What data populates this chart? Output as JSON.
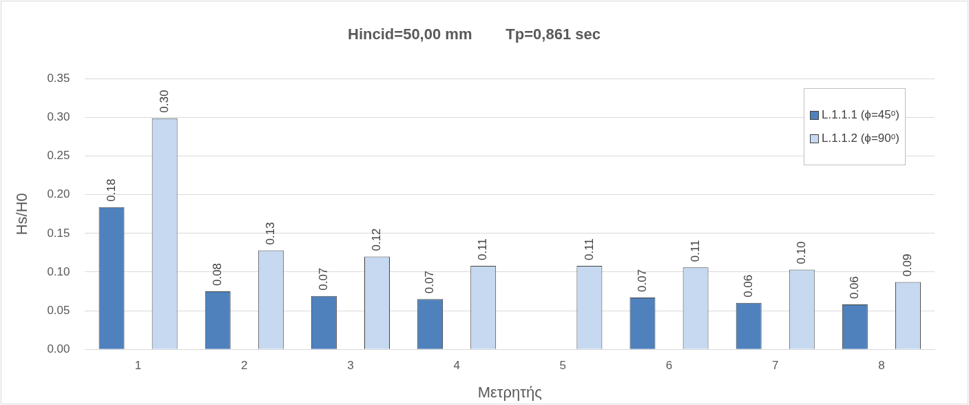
{
  "chart_data": {
    "type": "bar",
    "title": "Hincid=50,00 mm        Tp=0,861 sec",
    "xlabel": "Μετρητής",
    "ylabel": "Hs/H0",
    "categories": [
      "1",
      "2",
      "3",
      "4",
      "5",
      "6",
      "7",
      "8"
    ],
    "series": [
      {
        "name": "L.1.1.1 (ϕ=45ᵒ)",
        "color": "#4f81bd",
        "values": [
          0.184,
          0.075,
          0.069,
          0.065,
          null,
          0.067,
          0.06,
          0.058
        ],
        "value_labels": [
          "0.18",
          "0.08",
          "0.07",
          "0.07",
          null,
          "0.07",
          "0.06",
          "0.06"
        ]
      },
      {
        "name": "L.1.1.2 (ϕ=90ᵒ)",
        "color": "#c6d9f1",
        "values": [
          0.299,
          0.128,
          0.12,
          0.108,
          0.108,
          0.106,
          0.103,
          0.087
        ],
        "value_labels": [
          "0.30",
          "0.13",
          "0.12",
          "0.11",
          "0.11",
          "0.11",
          "0.10",
          "0.09"
        ]
      }
    ],
    "ylim": [
      0,
      0.35
    ],
    "yticks": [
      "0.00",
      "0.05",
      "0.10",
      "0.15",
      "0.20",
      "0.25",
      "0.30",
      "0.35"
    ],
    "grid": "y",
    "legend": "top right"
  }
}
